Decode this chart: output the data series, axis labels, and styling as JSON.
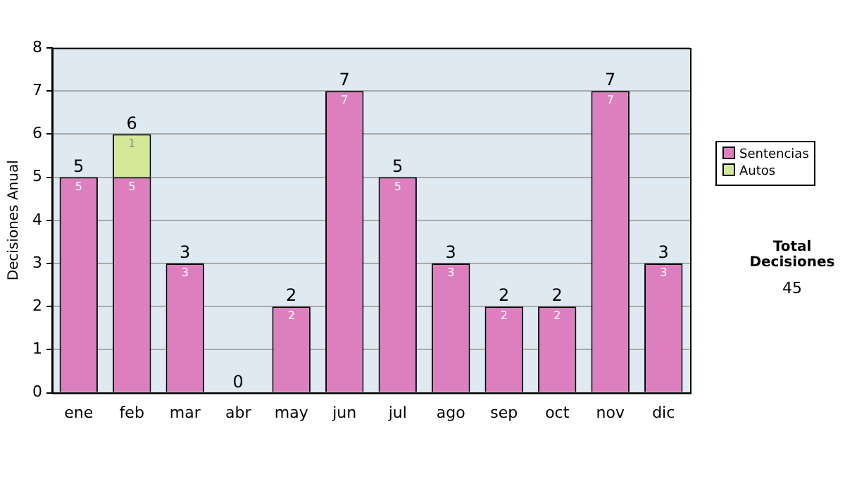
{
  "chart_data": {
    "type": "bar",
    "stacked": true,
    "ylabel": "Decisiones Anual",
    "categories": [
      "ene",
      "feb",
      "mar",
      "abr",
      "may",
      "jun",
      "jul",
      "ago",
      "sep",
      "oct",
      "nov",
      "dic"
    ],
    "series": [
      {
        "name": "Sentencias",
        "color": "#dd7fbf",
        "values": [
          5,
          5,
          3,
          0,
          2,
          7,
          5,
          3,
          2,
          2,
          7,
          3
        ],
        "value_labels": [
          "5",
          "5",
          "3",
          null,
          "2",
          "7",
          "5",
          "3",
          "2",
          "2",
          "7",
          "3"
        ]
      },
      {
        "name": "Autos",
        "color": "#d4e89a",
        "values": [
          null,
          1,
          null,
          null,
          null,
          null,
          null,
          null,
          null,
          null,
          null,
          null
        ],
        "value_labels": [
          null,
          "1",
          null,
          null,
          null,
          null,
          null,
          null,
          null,
          null,
          null,
          null
        ]
      }
    ],
    "totals": [
      "5",
      "6",
      "3",
      "0",
      "2",
      "7",
      "5",
      "3",
      "2",
      "2",
      "7",
      "3"
    ],
    "ylim": [
      0,
      8
    ],
    "yticks": [
      0,
      1,
      2,
      3,
      4,
      5,
      6,
      7,
      8
    ],
    "grid": "y",
    "legend": "right",
    "annotations": [
      "Total Decisiones",
      "45"
    ]
  }
}
